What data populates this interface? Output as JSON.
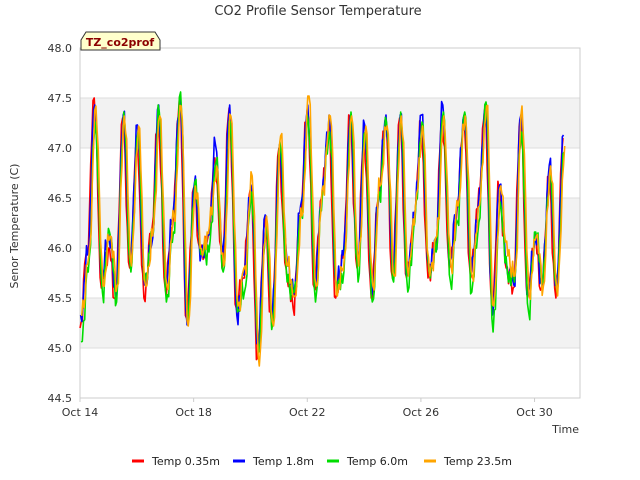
{
  "chart_data": {
    "type": "line",
    "title": "CO2 Profile Sensor Temperature",
    "xlabel": "Time",
    "ylabel": "Senor Temperature (C)",
    "site_label": "TZ_co2prof",
    "xlim": [
      0,
      17.6
    ],
    "ylim": [
      44.5,
      48.0
    ],
    "x_ticks": [
      {
        "value": 0,
        "label": "Oct 14"
      },
      {
        "value": 4,
        "label": "Oct 18"
      },
      {
        "value": 8,
        "label": "Oct 22"
      },
      {
        "value": 12,
        "label": "Oct 26"
      },
      {
        "value": 16,
        "label": "Oct 30"
      }
    ],
    "y_ticks": [
      {
        "value": 44.5,
        "label": "44.5"
      },
      {
        "value": 45.0,
        "label": "45.0"
      },
      {
        "value": 45.5,
        "label": "45.5"
      },
      {
        "value": 46.0,
        "label": "46.0"
      },
      {
        "value": 46.5,
        "label": "46.5"
      },
      {
        "value": 47.0,
        "label": "47.0"
      },
      {
        "value": 47.5,
        "label": "47.5"
      },
      {
        "value": 48.0,
        "label": "48.0"
      }
    ],
    "bands": [
      [
        45.0,
        45.5
      ],
      [
        46.0,
        46.5
      ],
      [
        47.0,
        47.5
      ]
    ],
    "base_x": [
      0.0,
      0.25,
      0.5,
      0.75,
      1.0,
      1.25,
      1.5,
      1.75,
      2.0,
      2.25,
      2.5,
      2.75,
      3.0,
      3.25,
      3.5,
      3.75,
      4.0,
      4.25,
      4.5,
      4.75,
      5.0,
      5.25,
      5.5,
      5.75,
      6.0,
      6.25,
      6.5,
      6.75,
      7.0,
      7.25,
      7.5,
      7.75,
      8.0,
      8.25,
      8.5,
      8.75,
      9.0,
      9.25,
      9.5,
      9.75,
      10.0,
      10.25,
      10.5,
      10.75,
      11.0,
      11.25,
      11.5,
      11.75,
      12.0,
      12.25,
      12.5,
      12.75,
      13.0,
      13.25,
      13.5,
      13.75,
      14.0,
      14.25,
      14.5,
      14.75,
      15.0,
      15.25,
      15.5,
      15.75,
      16.0,
      16.25,
      16.5,
      16.75,
      17.0
    ],
    "series": [
      {
        "name": "Temp 0.35m",
        "color": "#ff0000",
        "offset": 0.0,
        "shift": 0.0,
        "values": [
          45.2,
          46.0,
          47.5,
          45.6,
          46.0,
          45.5,
          47.3,
          45.8,
          47.1,
          45.5,
          46.1,
          47.3,
          45.6,
          46.2,
          47.5,
          45.3,
          46.6,
          45.9,
          46.1,
          46.9,
          45.8,
          47.4,
          45.4,
          45.7,
          46.6,
          44.9,
          46.3,
          45.2,
          47.0,
          45.8,
          45.4,
          46.3,
          47.4,
          45.6,
          46.5,
          47.2,
          45.5,
          45.9,
          47.3,
          45.8,
          47.1,
          45.5,
          46.5,
          47.3,
          45.7,
          47.3,
          45.7,
          46.3,
          47.2,
          45.7,
          46.0,
          47.3,
          45.8,
          46.3,
          47.3,
          45.7,
          46.4,
          47.4,
          45.4,
          46.6,
          45.8,
          45.6,
          47.3,
          45.5,
          46.1,
          45.6,
          46.7,
          45.5,
          47.1
        ]
      },
      {
        "name": "Temp 1.8m",
        "color": "#0000ff",
        "offset": 0.03,
        "shift": 0.02,
        "values": [
          45.3,
          45.9,
          47.4,
          45.7,
          46.1,
          45.5,
          47.3,
          45.9,
          47.2,
          45.6,
          46.0,
          47.4,
          45.6,
          46.3,
          47.5,
          45.2,
          46.6,
          45.9,
          46.1,
          47.0,
          45.9,
          47.4,
          45.3,
          45.7,
          46.6,
          45.0,
          46.3,
          45.3,
          47.0,
          45.9,
          45.5,
          46.4,
          47.4,
          45.6,
          46.5,
          47.3,
          45.6,
          45.9,
          47.3,
          45.8,
          47.2,
          45.5,
          46.5,
          47.3,
          45.7,
          47.3,
          45.7,
          46.3,
          47.3,
          45.8,
          46.0,
          47.4,
          45.8,
          46.4,
          47.3,
          45.7,
          46.4,
          47.4,
          45.3,
          46.6,
          45.8,
          45.6,
          47.3,
          45.5,
          46.1,
          45.6,
          46.8,
          45.6,
          47.1
        ]
      },
      {
        "name": "Temp 6.0m",
        "color": "#00dd00",
        "offset": -0.04,
        "shift": 0.04,
        "values": [
          45.1,
          45.8,
          47.3,
          45.6,
          46.2,
          45.5,
          47.4,
          45.8,
          47.2,
          45.7,
          46.2,
          47.4,
          45.5,
          46.2,
          47.6,
          45.3,
          46.7,
          46.0,
          46.0,
          46.9,
          45.8,
          47.3,
          45.4,
          45.6,
          46.6,
          45.0,
          46.2,
          45.3,
          47.1,
          45.7,
          45.6,
          46.4,
          47.3,
          45.5,
          46.6,
          47.2,
          45.6,
          45.8,
          47.4,
          45.7,
          47.2,
          45.5,
          46.6,
          47.3,
          45.7,
          47.4,
          45.6,
          46.3,
          47.3,
          45.8,
          46.0,
          47.4,
          45.7,
          46.3,
          47.4,
          45.6,
          46.3,
          47.5,
          45.2,
          46.5,
          45.8,
          45.7,
          47.2,
          45.4,
          46.2,
          45.7,
          46.8,
          45.6,
          47.0
        ]
      },
      {
        "name": "Temp 23.5m",
        "color": "#ffa500",
        "offset": 0.02,
        "shift": 0.06,
        "values": [
          45.3,
          45.9,
          47.4,
          45.6,
          46.1,
          45.6,
          47.3,
          45.8,
          47.2,
          45.6,
          46.1,
          47.3,
          45.6,
          46.3,
          47.4,
          45.2,
          46.6,
          45.9,
          46.2,
          46.8,
          45.8,
          47.3,
          45.4,
          45.8,
          46.7,
          44.8,
          46.3,
          45.2,
          47.1,
          45.8,
          45.5,
          46.3,
          47.5,
          45.6,
          46.6,
          47.3,
          45.5,
          45.9,
          47.3,
          45.8,
          47.2,
          45.6,
          46.6,
          47.2,
          45.7,
          47.3,
          45.7,
          46.4,
          47.2,
          45.7,
          46.1,
          47.3,
          45.8,
          46.4,
          47.3,
          45.7,
          46.4,
          47.4,
          45.4,
          46.6,
          45.9,
          45.7,
          47.4,
          45.5,
          46.1,
          45.6,
          46.8,
          45.5,
          47.0
        ]
      }
    ]
  }
}
